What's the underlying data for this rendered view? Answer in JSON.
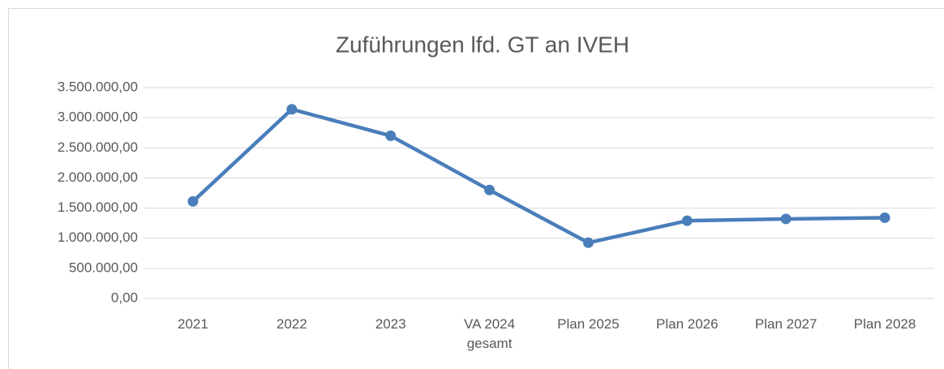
{
  "chart_data": {
    "type": "line",
    "title": "Zuführungen lfd. GT an IVEH",
    "categories": [
      "2021",
      "2022",
      "2023",
      "VA 2024 gesamt",
      "Plan 2025",
      "Plan 2026",
      "Plan 2027",
      "Plan 2028"
    ],
    "series": [
      {
        "name": "Zuführungen lfd. GT an IVEH",
        "color": "#4a7ebb",
        "values": [
          1610000,
          3140000,
          2700000,
          1800000,
          925000,
          1290000,
          1320000,
          1340000
        ]
      }
    ],
    "ylim": [
      0,
      3500000
    ],
    "yticks": [
      {
        "value": 0,
        "label": "0,00"
      },
      {
        "value": 500000,
        "label": "500.000,00"
      },
      {
        "value": 1000000,
        "label": "1.000.000,00"
      },
      {
        "value": 1500000,
        "label": "1.500.000,00"
      },
      {
        "value": 2000000,
        "label": "2.000.000,00"
      },
      {
        "value": 2500000,
        "label": "2.500.000,00"
      },
      {
        "value": 3000000,
        "label": "3.000.000,00"
      },
      {
        "value": 3500000,
        "label": "3.500.000,00"
      }
    ],
    "grid": true
  }
}
